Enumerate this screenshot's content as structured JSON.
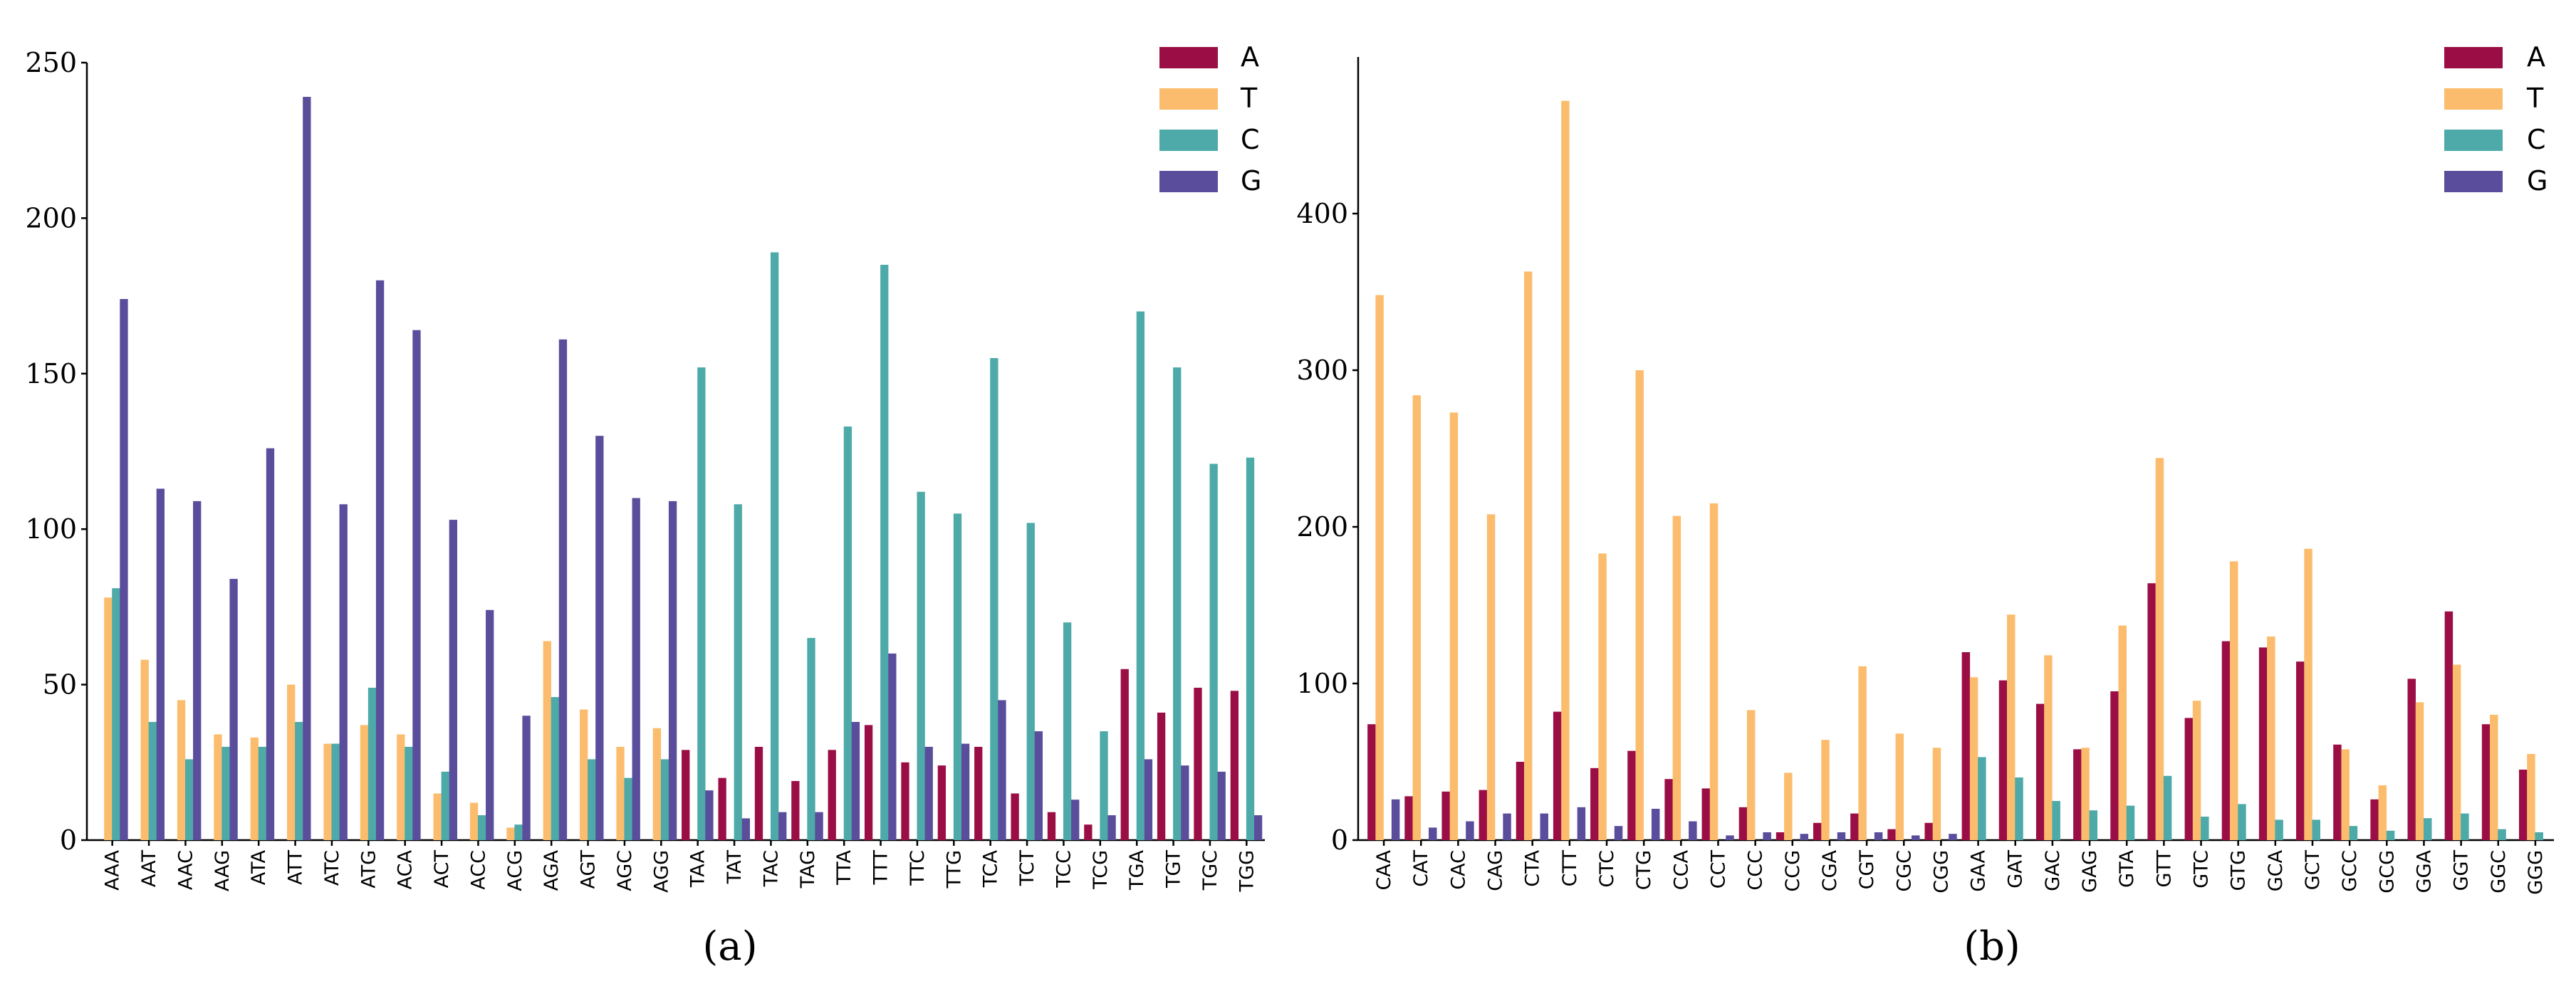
{
  "colors": {
    "A": "#9b0e45",
    "T": "#fbbd6d",
    "C": "#4daaa8",
    "G": "#5a4d9c"
  },
  "chart_data": [
    {
      "type": "bar",
      "panel": "a",
      "caption": "(a)",
      "title": "",
      "xlabel": "",
      "ylabel": "",
      "ylim": [
        0,
        250
      ],
      "yticks": [
        0,
        50,
        100,
        150,
        200,
        250
      ],
      "legend_position": "top-right",
      "legend": [
        "A",
        "T",
        "C",
        "G"
      ],
      "categories": [
        "AAA",
        "AAT",
        "AAC",
        "AAG",
        "ATA",
        "ATT",
        "ATC",
        "ATG",
        "ACA",
        "ACT",
        "ACC",
        "ACG",
        "AGA",
        "AGT",
        "AGC",
        "AGG",
        "TAA",
        "TAT",
        "TAC",
        "TAG",
        "TTA",
        "TTT",
        "TTC",
        "TTG",
        "TCA",
        "TCT",
        "TCC",
        "TCG",
        "TGA",
        "TGT",
        "TGC",
        "TGG"
      ],
      "series": [
        {
          "name": "A",
          "values": [
            0,
            0,
            0,
            0,
            0,
            0,
            0,
            0,
            0,
            0,
            0,
            0,
            0,
            0,
            0,
            0,
            29,
            20,
            30,
            19,
            29,
            37,
            25,
            24,
            30,
            15,
            9,
            5,
            55,
            41,
            49,
            48
          ]
        },
        {
          "name": "T",
          "values": [
            78,
            58,
            45,
            34,
            33,
            50,
            31,
            37,
            34,
            15,
            12,
            4,
            64,
            42,
            30,
            36,
            0,
            0,
            0,
            0,
            0,
            0,
            0,
            0,
            0,
            0,
            0,
            0,
            0,
            0,
            0,
            0
          ]
        },
        {
          "name": "C",
          "values": [
            81,
            38,
            26,
            30,
            30,
            38,
            31,
            49,
            30,
            22,
            8,
            5,
            46,
            26,
            20,
            26,
            152,
            108,
            189,
            65,
            133,
            185,
            112,
            105,
            155,
            102,
            70,
            35,
            170,
            152,
            121,
            123
          ]
        },
        {
          "name": "G",
          "values": [
            174,
            113,
            109,
            84,
            126,
            239,
            108,
            180,
            164,
            103,
            74,
            40,
            161,
            130,
            110,
            109,
            16,
            7,
            9,
            9,
            38,
            60,
            30,
            31,
            45,
            35,
            13,
            8,
            26,
            24,
            22,
            8
          ]
        }
      ]
    },
    {
      "type": "bar",
      "panel": "b",
      "caption": "(b)",
      "title": "",
      "xlabel": "",
      "ylabel": "",
      "ylim": [
        0,
        500
      ],
      "yticks": [
        0,
        100,
        200,
        300,
        400
      ],
      "legend_position": "top-right",
      "legend": [
        "A",
        "T",
        "C",
        "G"
      ],
      "categories": [
        "CAA",
        "CAT",
        "CAC",
        "CAG",
        "CTA",
        "CTT",
        "CTC",
        "CTG",
        "CCA",
        "CCT",
        "CCC",
        "CCG",
        "CGA",
        "CGT",
        "CGC",
        "CGG",
        "GAA",
        "GAT",
        "GAC",
        "GAG",
        "GTA",
        "GTT",
        "GTC",
        "GTG",
        "GCA",
        "GCT",
        "GCC",
        "GCG",
        "GGA",
        "GGT",
        "GGC",
        "GGG"
      ],
      "series": [
        {
          "name": "A",
          "values": [
            74,
            28,
            31,
            32,
            50,
            82,
            46,
            57,
            39,
            33,
            21,
            5,
            11,
            17,
            7,
            11,
            120,
            102,
            87,
            58,
            95,
            164,
            78,
            127,
            123,
            114,
            61,
            26,
            103,
            146,
            74,
            45
          ]
        },
        {
          "name": "T",
          "values": [
            348,
            284,
            273,
            208,
            363,
            472,
            183,
            300,
            207,
            215,
            83,
            43,
            64,
            111,
            68,
            59,
            104,
            144,
            118,
            59,
            137,
            244,
            89,
            178,
            130,
            186,
            58,
            35,
            88,
            112,
            80,
            55
          ]
        },
        {
          "name": "C",
          "values": [
            0,
            0,
            0,
            0,
            0,
            0,
            0,
            0,
            0,
            0,
            0,
            0,
            0,
            0,
            0,
            0,
            53,
            40,
            25,
            19,
            22,
            41,
            15,
            23,
            13,
            13,
            9,
            6,
            14,
            17,
            7,
            5
          ]
        },
        {
          "name": "G",
          "values": [
            26,
            8,
            12,
            17,
            17,
            21,
            9,
            20,
            12,
            3,
            5,
            4,
            5,
            5,
            3,
            4,
            0,
            0,
            0,
            0,
            0,
            0,
            0,
            0,
            0,
            0,
            0,
            0,
            0,
            0,
            0,
            0
          ]
        }
      ]
    }
  ]
}
